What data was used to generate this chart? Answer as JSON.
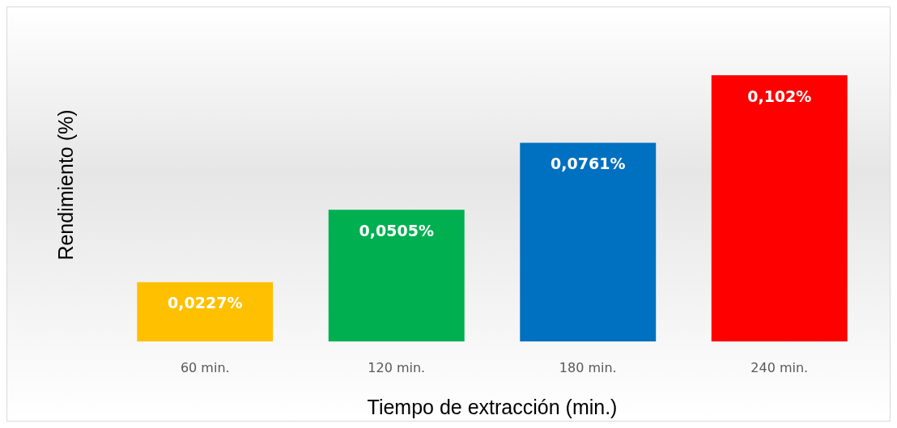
{
  "chart_data": {
    "type": "bar",
    "xlabel": "Tiempo de extracción (min.)",
    "ylabel": "Rendimiento (%)",
    "categories": [
      "60 min.",
      "120 min.",
      "180 min.",
      "240 min."
    ],
    "values": [
      0.0227,
      0.0505,
      0.0761,
      0.102
    ],
    "colors": [
      "#ffc000",
      "#00b050",
      "#0070c0",
      "#ff0000"
    ],
    "value_labels": [
      "0,0227%",
      "0,0505%",
      "0,0761%",
      "0,102%"
    ],
    "grid": false
  }
}
